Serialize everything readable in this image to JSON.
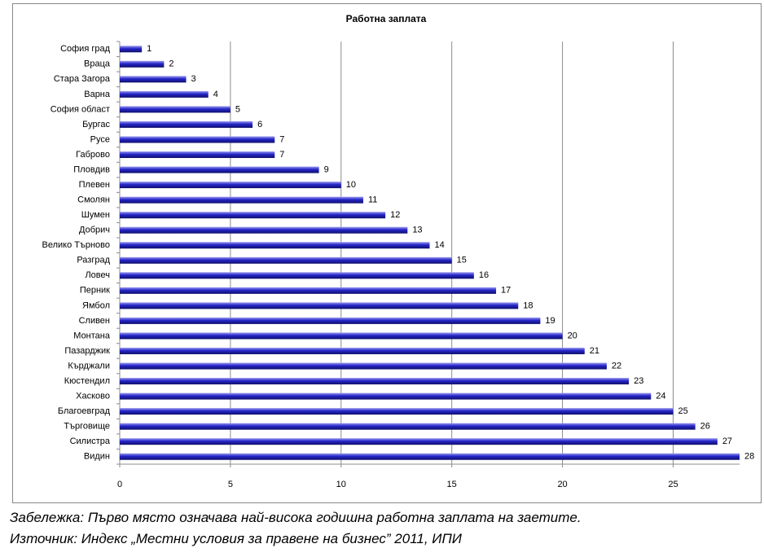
{
  "chart_data": {
    "type": "bar",
    "orientation": "horizontal",
    "title": "Работна заплата",
    "categories": [
      "София град",
      "Враца",
      "Стара Загора",
      "Варна",
      "София област",
      "Бургас",
      "Русе",
      "Габрово",
      "Пловдив",
      "Плевен",
      "Смолян",
      "Шумен",
      "Добрич",
      "Велико Търново",
      "Разград",
      "Ловеч",
      "Перник",
      "Ямбол",
      "Сливен",
      "Монтана",
      "Пазарджик",
      "Кърджали",
      "Кюстендил",
      "Хасково",
      "Благоевград",
      "Търговище",
      "Силистра",
      "Видин"
    ],
    "values": [
      1,
      2,
      3,
      4,
      5,
      6,
      7,
      7,
      9,
      10,
      11,
      12,
      13,
      14,
      15,
      16,
      17,
      18,
      19,
      20,
      21,
      22,
      23,
      24,
      25,
      26,
      27,
      28
    ],
    "color": "#2424c8",
    "xlim": [
      0,
      28
    ],
    "xticks": [
      0,
      5,
      10,
      15,
      20,
      25
    ],
    "grid": true,
    "annotations": [
      "Забележка: Първо място означава най-висока годишна работна заплата на заетите.",
      "Източник: Индекс „Местни условия за правене на бизнес” 2011, ИПИ"
    ]
  }
}
